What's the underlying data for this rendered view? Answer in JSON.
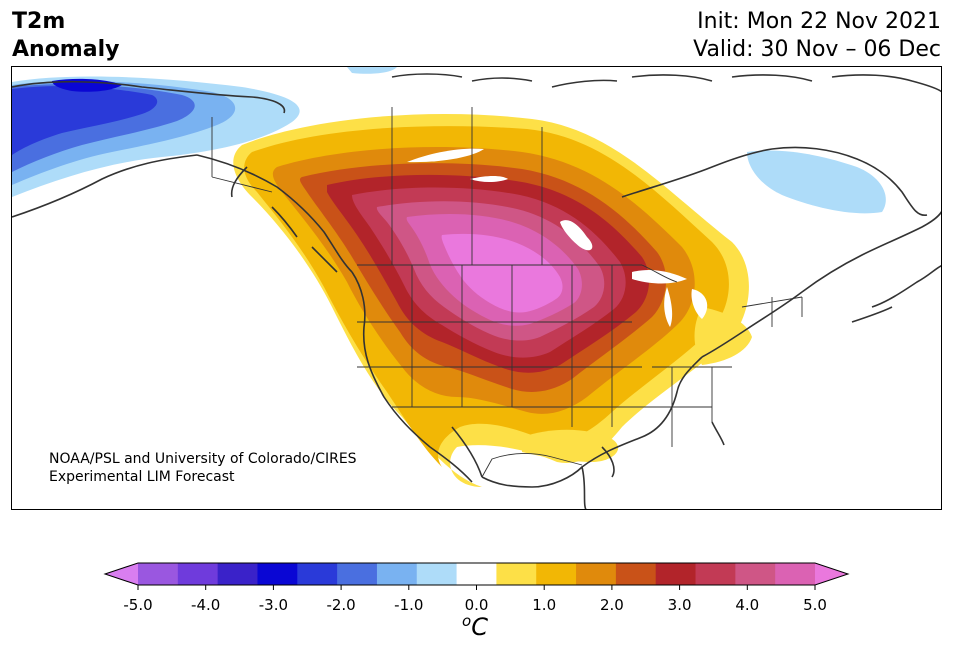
{
  "header": {
    "title_line1": "T2m",
    "title_line2": "Anomaly",
    "init": "Init: Mon 22 Nov 2021",
    "valid": "Valid: 30 Nov – 06 Dec"
  },
  "credit": {
    "line1": "NOAA/PSL and University of Colorado/CIRES",
    "line2": "Experimental LIM Forecast"
  },
  "colorbar": {
    "unit_base": "C",
    "unit_sup": "o",
    "tick_labels": [
      "-5.0",
      "-4.0",
      "-3.0",
      "-2.0",
      "-1.0",
      "0.0",
      "1.0",
      "2.0",
      "3.0",
      "4.0",
      "5.0"
    ],
    "colors": [
      "#9a57e0",
      "#6f3bdc",
      "#3a22c9",
      "#0a06d4",
      "#2a3ad9",
      "#4a6fe0",
      "#79b2f1",
      "#aedcf9",
      "#ffffff",
      "#fde047",
      "#f2b705",
      "#e08a0c",
      "#c95218",
      "#b2242a",
      "#c23a55",
      "#cf5686",
      "#db62b3"
    ],
    "extend_low_color": "#d97ef0",
    "extend_high_color": "#ea78dd"
  },
  "map_colors": {
    "pink_max": "#ea78dd",
    "pink": "#db62b3",
    "magenta": "#cf5686",
    "rose": "#c23a55",
    "red": "#b2242a",
    "orange_red": "#c95218",
    "orange": "#e08a0c",
    "amber": "#f2b705",
    "yellow": "#fde047",
    "light_blue": "#aedcf9",
    "sky_blue": "#79b2f1",
    "blue": "#4a6fe0",
    "deep_blue": "#2a3ad9",
    "darkest_blue": "#0a06d4",
    "coast": "#333333"
  }
}
